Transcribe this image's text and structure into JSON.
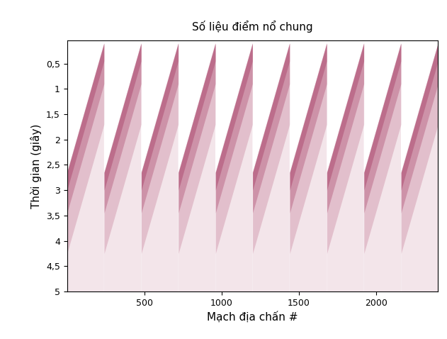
{
  "chart_data": {
    "type": "seismic_gather",
    "title": "Số liệu điểm nổ chung",
    "x_label": "Mạch địa chấn #",
    "y_label": "Thời gian (giây)",
    "xlim": [
      1,
      2400
    ],
    "xticks": [
      500,
      1000,
      1500,
      2000
    ],
    "ylim": [
      5,
      0.05
    ],
    "yticks": [
      {
        "value": 0.5,
        "label": "0,5"
      },
      1,
      {
        "value": 1.5,
        "label": "1,5"
      },
      2,
      {
        "value": 2.5,
        "label": "2,5"
      },
      3,
      {
        "value": 3.5,
        "label": "3,5"
      },
      4,
      {
        "value": 4.5,
        "label": "4,5"
      },
      5
    ],
    "shot_first_traces": [
      1,
      241,
      481,
      721,
      961,
      1201,
      1441,
      1681,
      1921,
      2161
    ],
    "traces_per_shot": 240,
    "first_break_far": 2.65,
    "first_break_near": 0.1,
    "color": "#9e2a55",
    "grid": false
  }
}
